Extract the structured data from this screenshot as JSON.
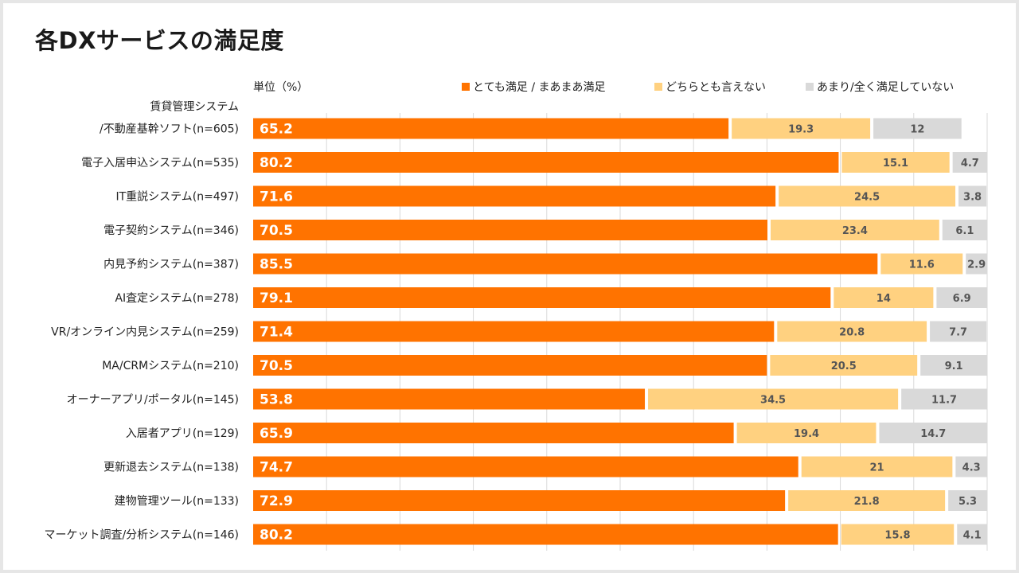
{
  "title": "各DXサービスの満足度",
  "colors": {
    "satisfied": "#ff7300",
    "neutral": "#ffd180",
    "unsatisfied": "#d9d9d9"
  },
  "chart_data": {
    "type": "bar",
    "orientation": "horizontal",
    "stacked": true,
    "unit_label": "単位（%）",
    "xlim": [
      0,
      100
    ],
    "grid": true,
    "legend_position": "top-right",
    "categories": [
      [
        "賃貸管理システム",
        "/不動産基幹ソフト(n=605)"
      ],
      [
        "電子入居申込システム(n=535)"
      ],
      [
        "IT重説システム(n=497)"
      ],
      [
        "電子契約システム(n=346)"
      ],
      [
        "内見予約システム(n=387)"
      ],
      [
        "AI査定システム(n=278)"
      ],
      [
        "VR/オンライン内見システム(n=259)"
      ],
      [
        "MA/CRMシステム(n=210)"
      ],
      [
        "オーナーアプリ/ポータル(n=145)"
      ],
      [
        "入居者アプリ(n=129)"
      ],
      [
        "更新退去システム(n=138)"
      ],
      [
        "建物管理ツール(n=133)"
      ],
      [
        "マーケット調査/分析システム(n=146)"
      ]
    ],
    "series": [
      {
        "name": "とても満足 / まあまあ満足",
        "values": [
          65.2,
          80.2,
          71.6,
          70.5,
          85.5,
          79.1,
          71.4,
          70.5,
          53.8,
          65.9,
          74.7,
          72.9,
          80.2
        ]
      },
      {
        "name": "どちらとも言えない",
        "values": [
          19.3,
          15.1,
          24.5,
          23.4,
          11.6,
          14,
          20.8,
          20.5,
          34.5,
          19.4,
          21,
          21.8,
          15.8
        ]
      },
      {
        "name": "あまり/全く満足していない",
        "values": [
          12,
          4.7,
          3.8,
          6.1,
          2.9,
          6.9,
          7.7,
          9.1,
          11.7,
          14.7,
          4.3,
          5.3,
          4.1
        ]
      }
    ]
  }
}
